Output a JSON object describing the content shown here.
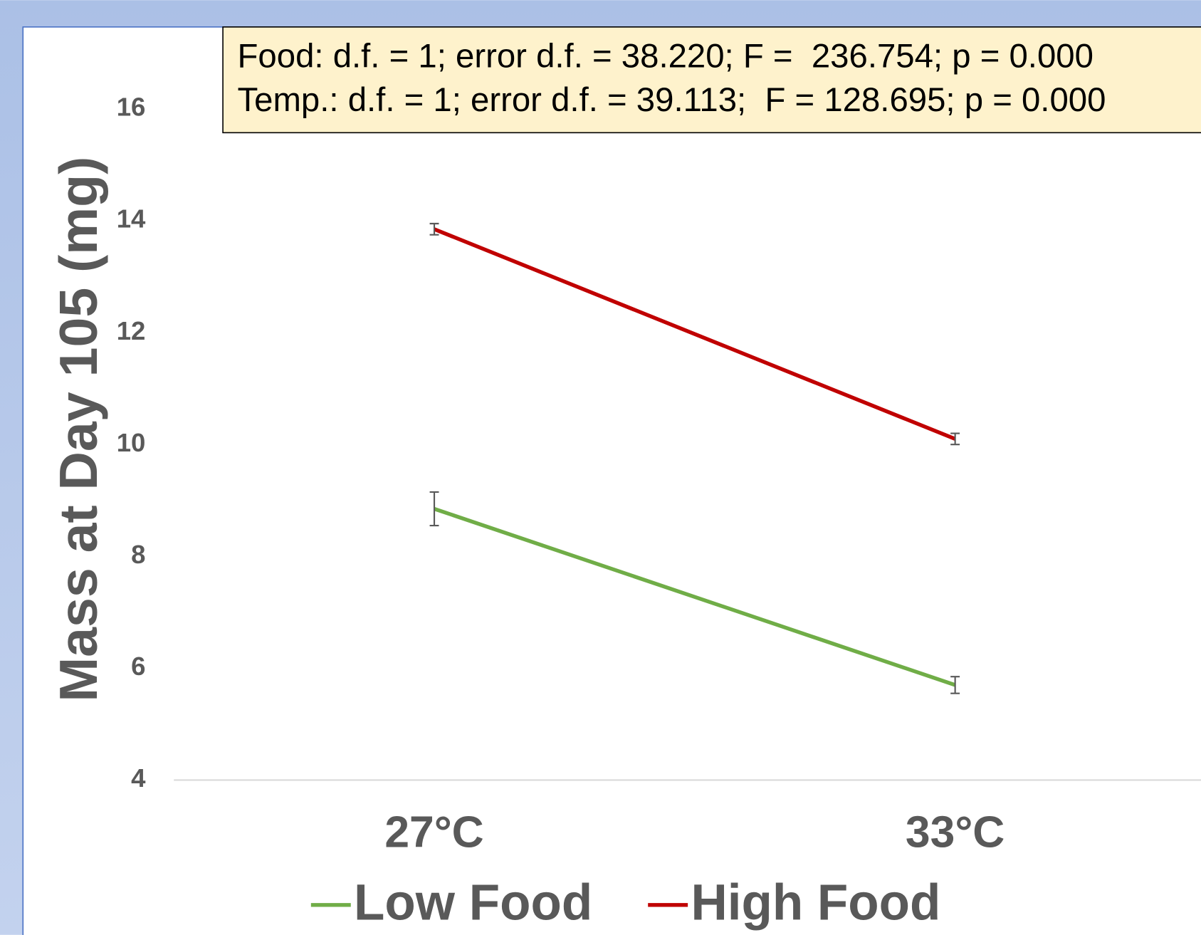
{
  "chart_data": {
    "type": "line",
    "y_label": "Mass at Day 105 (mg)",
    "annotations": [
      "Food: d.f. = 1; error d.f. = 38.220; F =  236.754; p = 0.000",
      "Temp.: d.f. = 1; error d.f. = 39.113;  F = 128.695; p = 0.000"
    ],
    "categories": [
      "27°C",
      "33°C"
    ],
    "series": [
      {
        "name": "Low Food",
        "color": "#70ad47",
        "values": [
          8.85,
          5.7
        ],
        "errors": [
          0.3,
          0.15
        ]
      },
      {
        "name": "High Food",
        "color": "#c00000",
        "values": [
          13.85,
          10.1
        ],
        "errors": [
          0.1,
          0.1
        ]
      }
    ],
    "ylim": [
      4,
      16
    ],
    "yticks": [
      4,
      6,
      8,
      10,
      12,
      14,
      16
    ]
  }
}
